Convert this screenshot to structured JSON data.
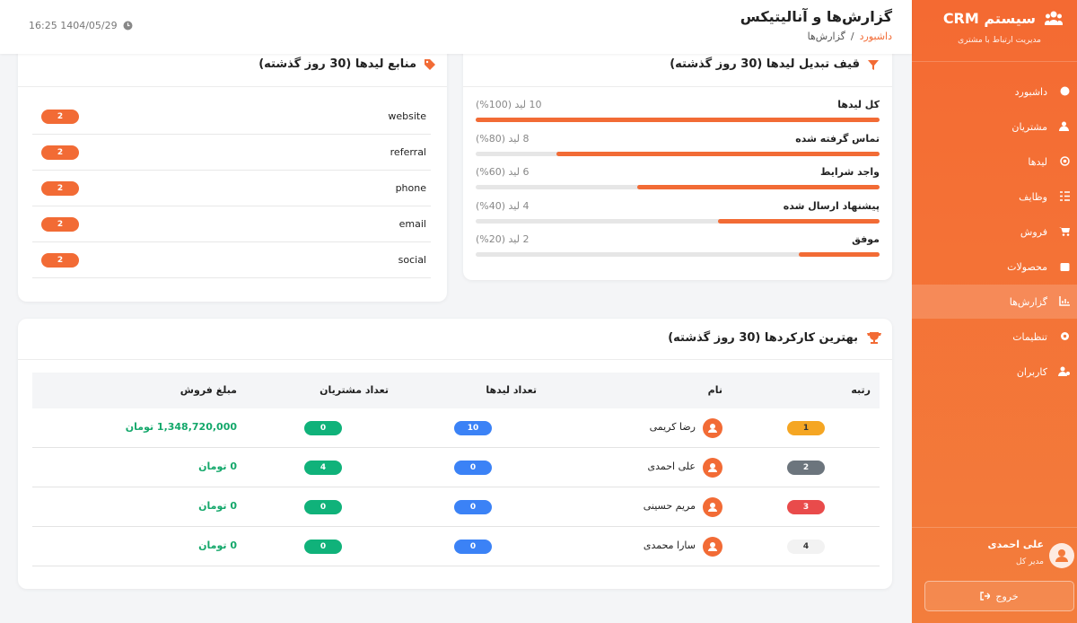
{
  "sidebar": {
    "brand": "سیستم CRM",
    "subtitle": "مدیریت ارتباط با مشتری",
    "menu": [
      "داشبورد",
      "مشتریان",
      "لیدها",
      "وظایف",
      "فروش",
      "محصولات",
      "گزارش‌ها",
      "تنظیمات",
      "کاربران"
    ],
    "user": {
      "name": "علی احمدی",
      "role": "مدیر کل"
    },
    "logout": "خروج"
  },
  "header": {
    "title": "گزارش‌ها و آنالیتیکس",
    "breadcrumb": {
      "home": "داشبورد",
      "separator": "/",
      "current": "گزارش‌ها"
    },
    "datetime": "16:25 1404/05/29"
  },
  "funnel": {
    "title": "قیف تبدیل لیدها (30 روز گذشته)",
    "stages": [
      {
        "label": "کل لیدها",
        "count_label": "10 لید (100%)",
        "percent": 100
      },
      {
        "label": "تماس گرفته شده",
        "count_label": "8 لید (80%)",
        "percent": 80
      },
      {
        "label": "واجد شرایط",
        "count_label": "6 لید (60%)",
        "percent": 60
      },
      {
        "label": "پیشنهاد ارسال شده",
        "count_label": "4 لید (40%)",
        "percent": 40
      },
      {
        "label": "موفق",
        "count_label": "2 لید (20%)",
        "percent": 20
      }
    ]
  },
  "sources": {
    "title": "منابع لیدها (30 روز گذشته)",
    "items": [
      {
        "name": "website",
        "count": 2
      },
      {
        "name": "referral",
        "count": 2
      },
      {
        "name": "phone",
        "count": 2
      },
      {
        "name": "email",
        "count": 2
      },
      {
        "name": "social",
        "count": 2
      }
    ]
  },
  "top_performers": {
    "title": "بهترین کارکردها (30 روز گذشته)",
    "columns": [
      "رتبه",
      "نام",
      "تعداد لیدها",
      "تعداد مشتریان",
      "مبلغ فروش"
    ],
    "rows": [
      {
        "rank": 1,
        "name": "رضا کریمی",
        "leads": 10,
        "customers": 0,
        "sales": "1,348,720,000 تومان"
      },
      {
        "rank": 2,
        "name": "علی احمدی",
        "leads": 0,
        "customers": 4,
        "sales": "0 تومان"
      },
      {
        "rank": 3,
        "name": "مریم حسینی",
        "leads": 0,
        "customers": 0,
        "sales": "0 تومان"
      },
      {
        "rank": 4,
        "name": "سارا محمدی",
        "leads": 0,
        "customers": 0,
        "sales": "0 تومان"
      }
    ]
  }
}
